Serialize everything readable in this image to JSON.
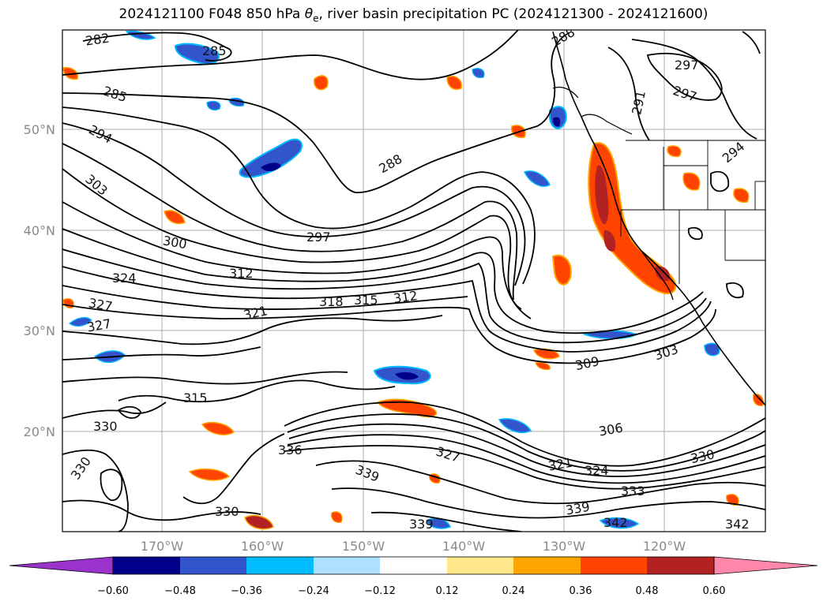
{
  "title": {
    "prefix": "2024121100 F048 850 hPa ",
    "symbol": "θ",
    "subscript": "e",
    "suffix": ", river basin precipitation PC (2024121300 - 2024121600)"
  },
  "map": {
    "lat_labels": [
      "50°N",
      "40°N",
      "30°N",
      "20°N"
    ],
    "lon_labels": [
      "170°W",
      "160°W",
      "150°W",
      "140°W",
      "130°W",
      "120°W"
    ],
    "contour_labels": [
      "282",
      "285",
      "288",
      "288",
      "285",
      "294",
      "303",
      "300",
      "297",
      "291",
      "297",
      "297",
      "294",
      "324",
      "312",
      "327",
      "327",
      "321",
      "318",
      "315",
      "312",
      "303",
      "309",
      "315",
      "330",
      "330",
      "336",
      "327",
      "321",
      "306",
      "324",
      "330",
      "339",
      "333",
      "339",
      "342",
      "339",
      "342",
      "330"
    ]
  },
  "colorbar": {
    "colors": [
      "#9933cc",
      "#00008b",
      "#3355cc",
      "#00bbff",
      "#b0e0ff",
      "#ffffff",
      "#ffe88a",
      "#ffa500",
      "#ff4400",
      "#b22222",
      "#ff88aa"
    ],
    "tick_labels": [
      "−0.60",
      "−0.48",
      "−0.36",
      "−0.24",
      "−0.12",
      "0.12",
      "0.24",
      "0.36",
      "0.48",
      "0.60"
    ]
  }
}
